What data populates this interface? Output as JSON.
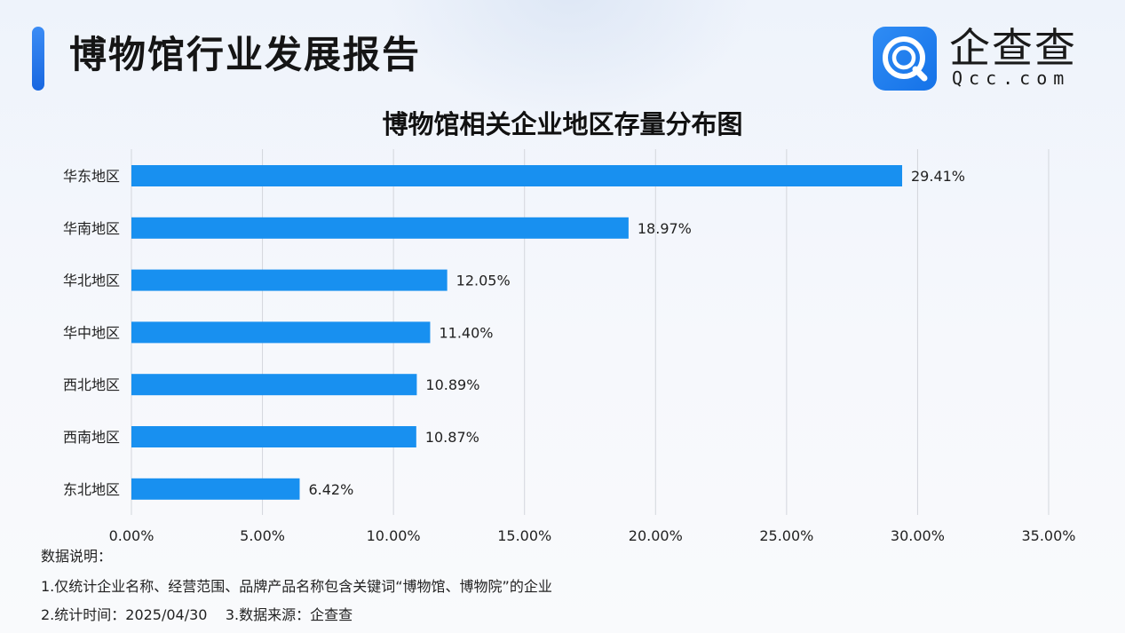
{
  "header": {
    "title": "博物馆行业发展报告"
  },
  "logo": {
    "name": "企查查",
    "sub": "Qcc.com",
    "icon": "qcc-logo-icon"
  },
  "colors": {
    "bar": "#1890F0",
    "accent": "#1E6FE6",
    "grid": "#D3D6DC"
  },
  "chart_data": {
    "type": "bar",
    "orientation": "horizontal",
    "title": "博物馆相关企业地区存量分布图",
    "categories": [
      "华东地区",
      "华南地区",
      "华北地区",
      "华中地区",
      "西北地区",
      "西南地区",
      "东北地区"
    ],
    "values": [
      29.41,
      18.97,
      12.05,
      11.4,
      10.89,
      10.87,
      6.42
    ],
    "value_labels": [
      "29.41%",
      "18.97%",
      "12.05%",
      "11.40%",
      "10.89%",
      "10.87%",
      "6.42%"
    ],
    "xlim": [
      0,
      35
    ],
    "xticks": [
      0,
      5,
      10,
      15,
      20,
      25,
      30,
      35
    ],
    "xtick_labels": [
      "0.00%",
      "5.00%",
      "10.00%",
      "15.00%",
      "20.00%",
      "25.00%",
      "30.00%",
      "35.00%"
    ],
    "grid": true,
    "legend": "none"
  },
  "notes": {
    "heading": "数据说明：",
    "line1": "1.仅统计企业名称、经营范围、品牌产品名称包含关键词“博物馆、博物院”的企业",
    "line2": "2.统计时间：2025/04/30    3.数据来源：企查查"
  }
}
